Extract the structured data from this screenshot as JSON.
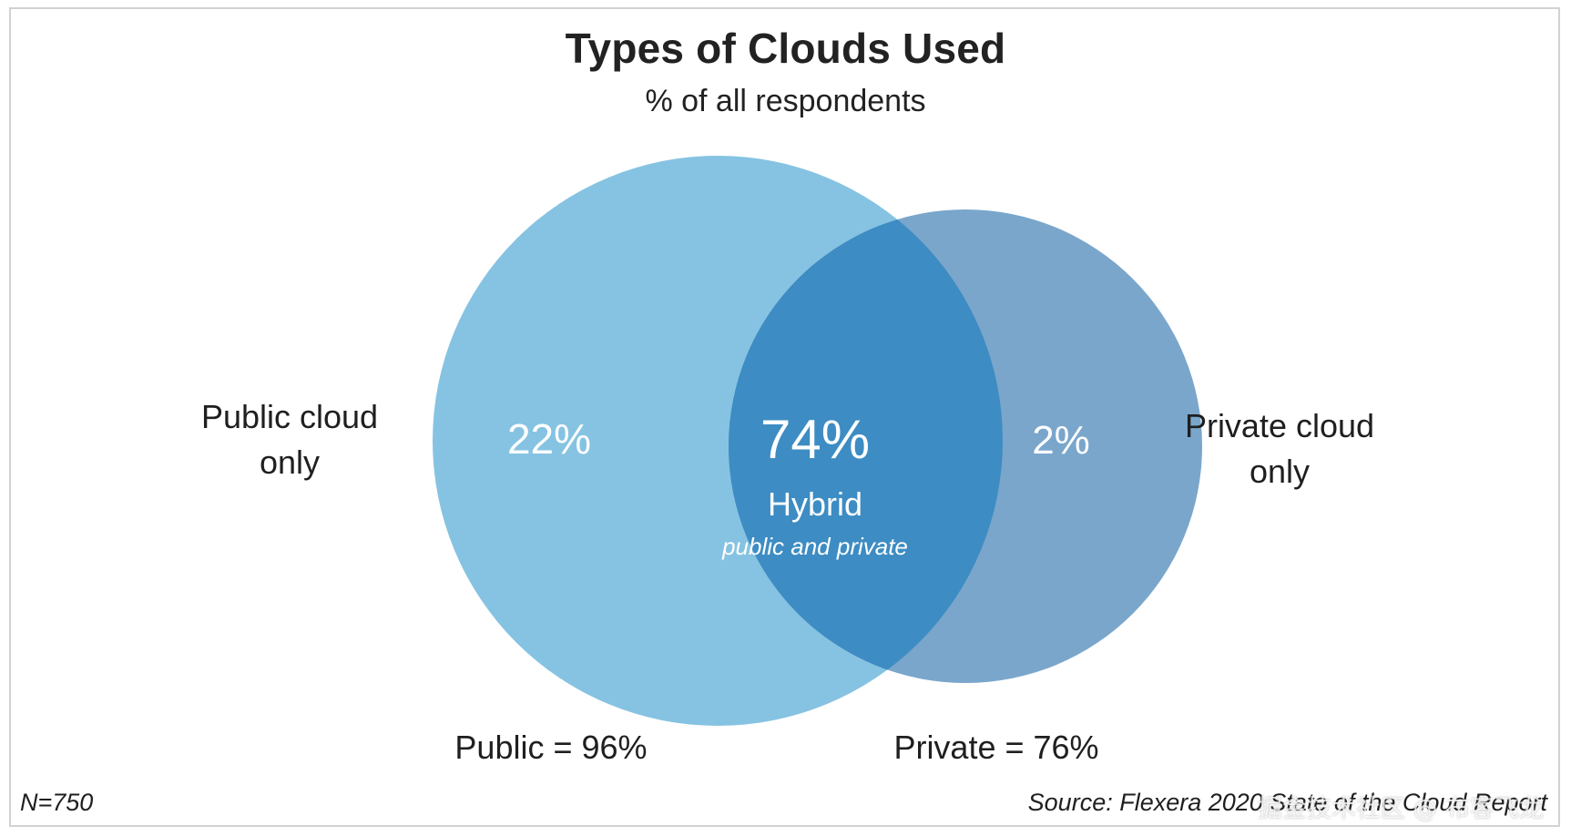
{
  "title": "Types of Clouds Used",
  "subtitle": "% of all respondents",
  "labels": {
    "public_only_line1": "Public cloud",
    "public_only_line2": "only",
    "private_only_line1": "Private cloud",
    "private_only_line2": "only",
    "public_total": "Public = 96%",
    "private_total": "Private = 76%"
  },
  "footer": {
    "n": "N=750",
    "source": "Source: Flexera 2020 State of the Cloud Report",
    "watermark": "掘金技术社区 @ 布客飞龙"
  },
  "chart_data": {
    "type": "venn",
    "title": "Types of Clouds Used",
    "subtitle": "% of all respondents",
    "sets": [
      {
        "name": "Public",
        "total_percent": 96,
        "only_percent": 22,
        "only_label": "Public cloud only"
      },
      {
        "name": "Private",
        "total_percent": 76,
        "only_percent": 2,
        "only_label": "Private cloud only"
      }
    ],
    "intersection": {
      "percent": 74,
      "label": "Hybrid",
      "sublabel": "public and private"
    },
    "region_labels": {
      "public_only": "22%",
      "hybrid": "74%",
      "private_only": "2%"
    },
    "colors": {
      "public": "#86c3e2",
      "private": "#7aa6cb",
      "hybrid": "#3d8cc3",
      "region_text": "#ffffff"
    },
    "n": 750
  }
}
